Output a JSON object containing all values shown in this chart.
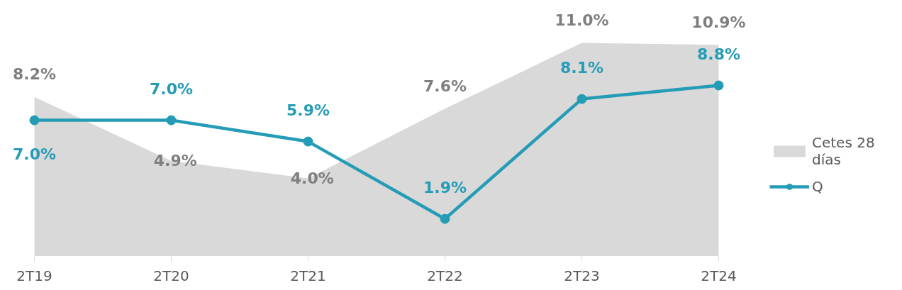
{
  "chart_data": {
    "type": "area",
    "categories": [
      "2T19",
      "2T20",
      "2T21",
      "2T22",
      "2T23",
      "2T24"
    ],
    "series": [
      {
        "name": "Cetes 28 días",
        "color": "#d9d9d9",
        "values": [
          8.2,
          4.9,
          4.0,
          7.6,
          11.0,
          10.9
        ],
        "value_labels": [
          "8.2%",
          "4.9%",
          "4.0%",
          "7.6%",
          "11.0%",
          "10.9%"
        ]
      },
      {
        "name": "Q",
        "type": "line",
        "color": "#259cb6",
        "marker": "circle",
        "line_style": "solid",
        "values": [
          7.0,
          7.0,
          5.9,
          1.9,
          8.1,
          8.8
        ],
        "value_labels": [
          "7.0%",
          "7.0%",
          "5.9%",
          "1.9%",
          "8.1%",
          "8.8%"
        ]
      }
    ],
    "legend": "right",
    "grid": false,
    "tick_labels": "x"
  }
}
